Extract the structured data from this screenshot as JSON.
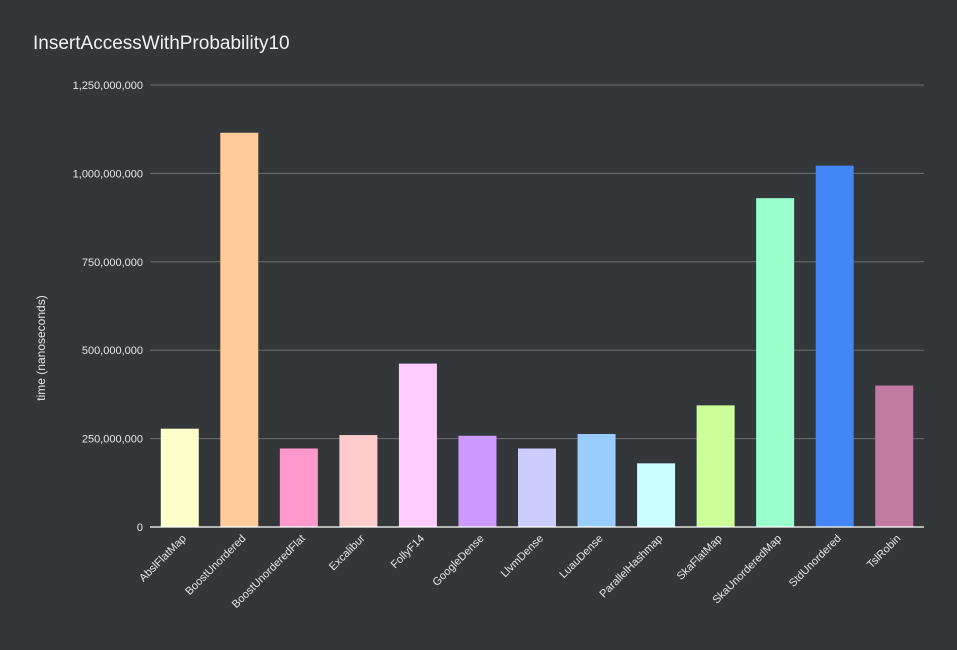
{
  "chart_data": {
    "type": "bar",
    "title": "InsertAccessWithProbability10",
    "xlabel": "",
    "ylabel": "time (nanoseconds)",
    "ylim": [
      0,
      1250000000
    ],
    "yticks": [
      0,
      250000000,
      500000000,
      750000000,
      1000000000,
      1250000000
    ],
    "ytick_labels": [
      "0",
      "250,000,000",
      "500,000,000",
      "750,000,000",
      "1,000,000,000",
      "1,250,000,000"
    ],
    "grid": true,
    "legend": "none",
    "categories": [
      "AbslFlatMap",
      "BoostUnordered",
      "BoostUnorderedFlat",
      "Excalibur",
      "FollyF14",
      "GoogleDense",
      "LlvmDense",
      "LuauDense",
      "ParallelHashmap",
      "SkaFlatMap",
      "SkaUnorderedMap",
      "StdUnordered",
      "TslRobin"
    ],
    "values": [
      278000000,
      1115000000,
      222000000,
      260000000,
      462000000,
      258000000,
      222000000,
      263000000,
      180000000,
      344000000,
      930000000,
      1022000000,
      400000000
    ],
    "colors": [
      "#ffffcc",
      "#ffcc99",
      "#ff99cc",
      "#ffcccc",
      "#ffccff",
      "#cc99ff",
      "#ccccff",
      "#99ccff",
      "#ccffff",
      "#ccff99",
      "#99ffcc",
      "#4285f4",
      "#c27ba0"
    ]
  }
}
